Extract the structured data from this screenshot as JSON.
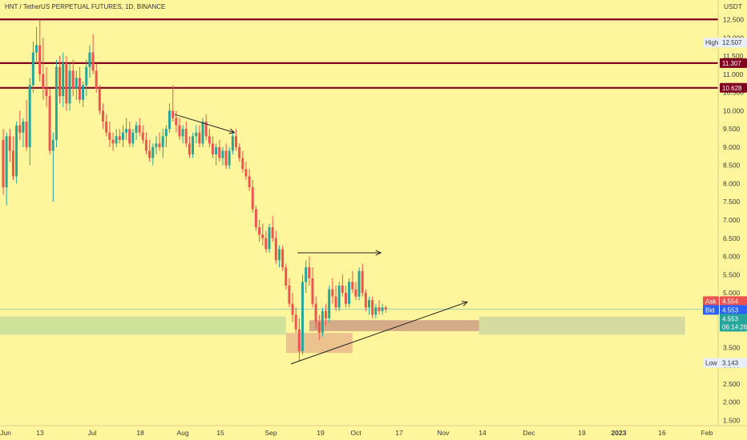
{
  "chart_data": {
    "type": "candlestick",
    "title": "HNT / TetherUS PERPETUAL FUTURES, 1D, BINANCE",
    "currency": "USDT",
    "ylim": [
      1.4,
      12.6
    ],
    "y_ticks": [
      "1.500",
      "2.000",
      "2.500",
      "3.000",
      "3.500",
      "4.000",
      "4.500",
      "5.000",
      "5.500",
      "6.000",
      "6.500",
      "7.000",
      "7.500",
      "8.000",
      "8.500",
      "9.000",
      "9.500",
      "10.000",
      "10.500",
      "11.000",
      "11.500",
      "12.000",
      "12.500"
    ],
    "x_ticks": [
      "Jun",
      "13",
      "Jul",
      "18",
      "Aug",
      "15",
      "Sep",
      "19",
      "Oct",
      "17",
      "Nov",
      "14",
      "Dec",
      "19",
      "2023",
      "16",
      "Feb"
    ],
    "up_color": "#26a69a",
    "down_color": "#ef5350",
    "levels": [
      {
        "price": 12.507,
        "label": "High",
        "value": "12.507",
        "color": "#800020"
      },
      {
        "price": 11.307,
        "value": "11.307",
        "color": "#800020"
      },
      {
        "price": 10.628,
        "value": "10.628",
        "color": "#800020"
      }
    ],
    "low": {
      "label": "Low",
      "value": "3.143"
    },
    "ask": {
      "label": "Ask",
      "value": "4.554",
      "color": "#ef5350"
    },
    "bid": {
      "label": "Bid",
      "value": "4.553",
      "color": "#2962ff"
    },
    "last": {
      "value": "4.553",
      "countdown": "06:14:26",
      "color": "#26a69a"
    },
    "candles": [
      [
        9.2,
        9.5,
        7.7,
        7.9
      ],
      [
        7.9,
        9.4,
        7.4,
        9.3
      ],
      [
        9.3,
        9.5,
        8.6,
        8.9
      ],
      [
        8.9,
        9.3,
        8.1,
        8.2
      ],
      [
        8.2,
        9.7,
        8.0,
        9.6
      ],
      [
        9.6,
        10.0,
        9.2,
        9.4
      ],
      [
        9.4,
        9.8,
        9.0,
        9.7
      ],
      [
        9.7,
        10.3,
        8.9,
        9.0
      ],
      [
        9.0,
        10.9,
        8.5,
        10.7
      ],
      [
        10.7,
        11.9,
        10.5,
        11.6
      ],
      [
        11.6,
        12.3,
        11.3,
        11.8
      ],
      [
        11.8,
        12.5,
        10.8,
        11.0
      ],
      [
        11.0,
        12.0,
        10.3,
        10.6
      ],
      [
        10.6,
        11.2,
        10.1,
        10.4
      ],
      [
        10.4,
        10.6,
        8.8,
        8.9
      ],
      [
        8.9,
        9.4,
        7.5,
        9.2
      ],
      [
        9.2,
        11.4,
        9.0,
        11.2
      ],
      [
        11.2,
        11.5,
        10.2,
        10.4
      ],
      [
        10.4,
        11.6,
        10.1,
        11.3
      ],
      [
        11.3,
        11.5,
        10.0,
        10.2
      ],
      [
        10.2,
        11.3,
        10.0,
        11.1
      ],
      [
        11.1,
        11.4,
        10.4,
        10.6
      ],
      [
        10.6,
        11.1,
        10.3,
        10.9
      ],
      [
        10.9,
        11.2,
        10.2,
        10.3
      ],
      [
        10.3,
        10.8,
        10.1,
        10.7
      ],
      [
        10.7,
        11.4,
        10.4,
        11.2
      ],
      [
        11.2,
        11.8,
        10.9,
        11.6
      ],
      [
        11.6,
        12.1,
        11.0,
        11.1
      ],
      [
        11.1,
        11.3,
        10.5,
        10.6
      ],
      [
        10.6,
        10.7,
        9.9,
        10.0
      ],
      [
        10.0,
        10.2,
        9.5,
        9.7
      ],
      [
        9.7,
        9.9,
        9.3,
        9.4
      ],
      [
        9.4,
        9.7,
        9.0,
        9.2
      ],
      [
        9.2,
        9.4,
        8.9,
        9.1
      ],
      [
        9.1,
        9.5,
        9.0,
        9.3
      ],
      [
        9.3,
        9.5,
        9.1,
        9.2
      ],
      [
        9.2,
        9.6,
        9.0,
        9.4
      ],
      [
        9.4,
        9.8,
        9.2,
        9.5
      ],
      [
        9.5,
        9.7,
        9.0,
        9.1
      ],
      [
        9.1,
        9.5,
        9.0,
        9.4
      ],
      [
        9.4,
        9.7,
        9.2,
        9.6
      ],
      [
        9.6,
        9.8,
        9.3,
        9.4
      ],
      [
        9.4,
        9.6,
        9.1,
        9.2
      ],
      [
        9.2,
        9.4,
        8.8,
        8.9
      ],
      [
        8.9,
        9.2,
        8.6,
        8.7
      ],
      [
        8.7,
        9.1,
        8.5,
        9.0
      ],
      [
        9.0,
        9.3,
        8.8,
        9.1
      ],
      [
        9.1,
        9.4,
        8.9,
        9.0
      ],
      [
        9.0,
        9.5,
        8.7,
        9.3
      ],
      [
        9.3,
        9.6,
        9.0,
        9.5
      ],
      [
        9.5,
        10.2,
        9.4,
        10.0
      ],
      [
        10.0,
        10.7,
        9.7,
        9.8
      ],
      [
        9.8,
        10.0,
        9.4,
        9.6
      ],
      [
        9.6,
        9.8,
        9.2,
        9.3
      ],
      [
        9.3,
        9.6,
        9.1,
        9.5
      ],
      [
        9.5,
        9.7,
        9.0,
        9.1
      ],
      [
        9.1,
        9.3,
        8.7,
        8.8
      ],
      [
        8.8,
        9.4,
        8.7,
        9.3
      ],
      [
        9.3,
        9.6,
        9.1,
        9.4
      ],
      [
        9.4,
        9.6,
        9.0,
        9.1
      ],
      [
        9.1,
        9.8,
        9.0,
        9.7
      ],
      [
        9.7,
        9.9,
        9.2,
        9.3
      ],
      [
        9.3,
        9.5,
        9.0,
        9.1
      ],
      [
        9.1,
        9.3,
        8.7,
        8.8
      ],
      [
        8.8,
        9.1,
        8.5,
        9.0
      ],
      [
        9.0,
        9.2,
        8.6,
        8.7
      ],
      [
        8.7,
        9.0,
        8.5,
        8.9
      ],
      [
        8.9,
        9.1,
        8.4,
        8.5
      ],
      [
        8.5,
        9.0,
        8.4,
        8.9
      ],
      [
        8.9,
        9.4,
        8.8,
        9.3
      ],
      [
        9.3,
        9.5,
        8.9,
        9.0
      ],
      [
        9.0,
        9.1,
        8.6,
        8.7
      ],
      [
        8.7,
        8.9,
        8.3,
        8.4
      ],
      [
        8.4,
        8.6,
        8.1,
        8.2
      ],
      [
        8.2,
        8.4,
        7.8,
        7.9
      ],
      [
        7.9,
        8.1,
        7.2,
        7.3
      ],
      [
        7.3,
        7.4,
        6.7,
        6.8
      ],
      [
        6.8,
        7.0,
        6.4,
        6.6
      ],
      [
        6.6,
        6.9,
        6.3,
        6.5
      ],
      [
        6.5,
        6.7,
        6.1,
        6.2
      ],
      [
        6.2,
        6.9,
        6.1,
        6.8
      ],
      [
        6.8,
        7.1,
        6.4,
        6.5
      ],
      [
        6.5,
        6.7,
        5.8,
        5.9
      ],
      [
        5.9,
        6.3,
        5.7,
        6.2
      ],
      [
        6.2,
        6.3,
        5.6,
        5.7
      ],
      [
        5.7,
        5.8,
        5.1,
        5.2
      ],
      [
        5.2,
        5.4,
        4.6,
        4.7
      ],
      [
        4.7,
        5.0,
        4.2,
        4.4
      ],
      [
        4.4,
        4.6,
        3.9,
        4.0
      ],
      [
        4.0,
        4.3,
        3.14,
        3.4
      ],
      [
        3.4,
        5.5,
        3.3,
        5.3
      ],
      [
        5.3,
        5.9,
        5.0,
        5.7
      ],
      [
        5.7,
        6.0,
        5.2,
        5.4
      ],
      [
        5.4,
        5.7,
        4.6,
        4.7
      ],
      [
        4.7,
        4.9,
        4.0,
        4.2
      ],
      [
        4.2,
        4.4,
        3.7,
        3.9
      ],
      [
        3.9,
        4.6,
        3.8,
        4.5
      ],
      [
        4.5,
        4.7,
        4.1,
        4.3
      ],
      [
        4.3,
        5.2,
        4.2,
        5.1
      ],
      [
        5.1,
        5.4,
        4.7,
        4.9
      ],
      [
        4.9,
        5.2,
        4.5,
        4.6
      ],
      [
        4.6,
        5.3,
        4.5,
        5.2
      ],
      [
        5.2,
        5.5,
        4.9,
        5.0
      ],
      [
        5.0,
        5.2,
        4.6,
        4.7
      ],
      [
        4.7,
        5.4,
        4.6,
        5.3
      ],
      [
        5.3,
        5.6,
        5.0,
        5.1
      ],
      [
        5.1,
        5.3,
        4.8,
        4.9
      ],
      [
        4.9,
        5.7,
        4.8,
        5.6
      ],
      [
        5.6,
        5.8,
        4.9,
        5.0
      ],
      [
        5.0,
        5.1,
        4.5,
        4.6
      ],
      [
        4.6,
        4.9,
        4.4,
        4.8
      ],
      [
        4.8,
        4.9,
        4.3,
        4.4
      ],
      [
        4.4,
        4.7,
        4.3,
        4.6
      ],
      [
        4.6,
        4.8,
        4.4,
        4.5
      ],
      [
        4.5,
        4.7,
        4.4,
        4.6
      ],
      [
        4.6,
        4.65,
        4.45,
        4.55
      ]
    ],
    "zones": [
      {
        "from_bar": 0,
        "to_bar": 85,
        "top": 4.35,
        "bottom": 3.85,
        "color": "#cfe29a"
      },
      {
        "from_bar": 86,
        "to_bar": 105,
        "top": 3.9,
        "bottom": 3.35,
        "color": "#ecc38f"
      },
      {
        "from_bar": 93,
        "to_bar": 144,
        "top": 4.25,
        "bottom": 3.95,
        "color": "#d3ab86"
      },
      {
        "from_bar": 144,
        "to_bar": 205,
        "top": 4.35,
        "bottom": 3.85,
        "color": "#d6dba0"
      }
    ],
    "lines": [
      {
        "from": [
          52,
          9.9
        ],
        "to": [
          70,
          9.4
        ],
        "arrow": true
      },
      {
        "from": [
          89,
          6.1
        ],
        "to": [
          114,
          6.1
        ],
        "arrow": true
      },
      {
        "from": [
          87,
          3.05
        ],
        "to": [
          140,
          4.75
        ],
        "arrow": true
      }
    ]
  }
}
